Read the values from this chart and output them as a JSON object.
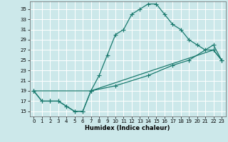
{
  "title": "",
  "xlabel": "Humidex (Indice chaleur)",
  "background_color": "#cce8ea",
  "grid_color": "#ffffff",
  "line_color": "#1a7a6e",
  "xlim": [
    -0.5,
    23.5
  ],
  "ylim": [
    14.0,
    36.5
  ],
  "yticks": [
    15,
    17,
    19,
    21,
    23,
    25,
    27,
    29,
    31,
    33,
    35
  ],
  "xticks": [
    0,
    1,
    2,
    3,
    4,
    5,
    6,
    7,
    8,
    9,
    10,
    11,
    12,
    13,
    14,
    15,
    16,
    17,
    18,
    19,
    20,
    21,
    22,
    23
  ],
  "line1_x": [
    0,
    1,
    2,
    3,
    4,
    5,
    6,
    7,
    8,
    9,
    10,
    11,
    12,
    13,
    14,
    15,
    16,
    17,
    18,
    19,
    20,
    21,
    22,
    23
  ],
  "line1_y": [
    19,
    17,
    17,
    17,
    16,
    15,
    15,
    19,
    22,
    26,
    30,
    31,
    34,
    35,
    36,
    36,
    34,
    32,
    31,
    29,
    28,
    27,
    27,
    25
  ],
  "line2_x": [
    0,
    1,
    2,
    3,
    4,
    5,
    6,
    7,
    22,
    23
  ],
  "line2_y": [
    19,
    17,
    17,
    17,
    16,
    15,
    15,
    19,
    27,
    25
  ],
  "line3_x": [
    0,
    7,
    10,
    14,
    17,
    19,
    22,
    23
  ],
  "line3_y": [
    19,
    19,
    20,
    22,
    24,
    25,
    28,
    25
  ],
  "marker_size": 4,
  "line_width": 0.9
}
